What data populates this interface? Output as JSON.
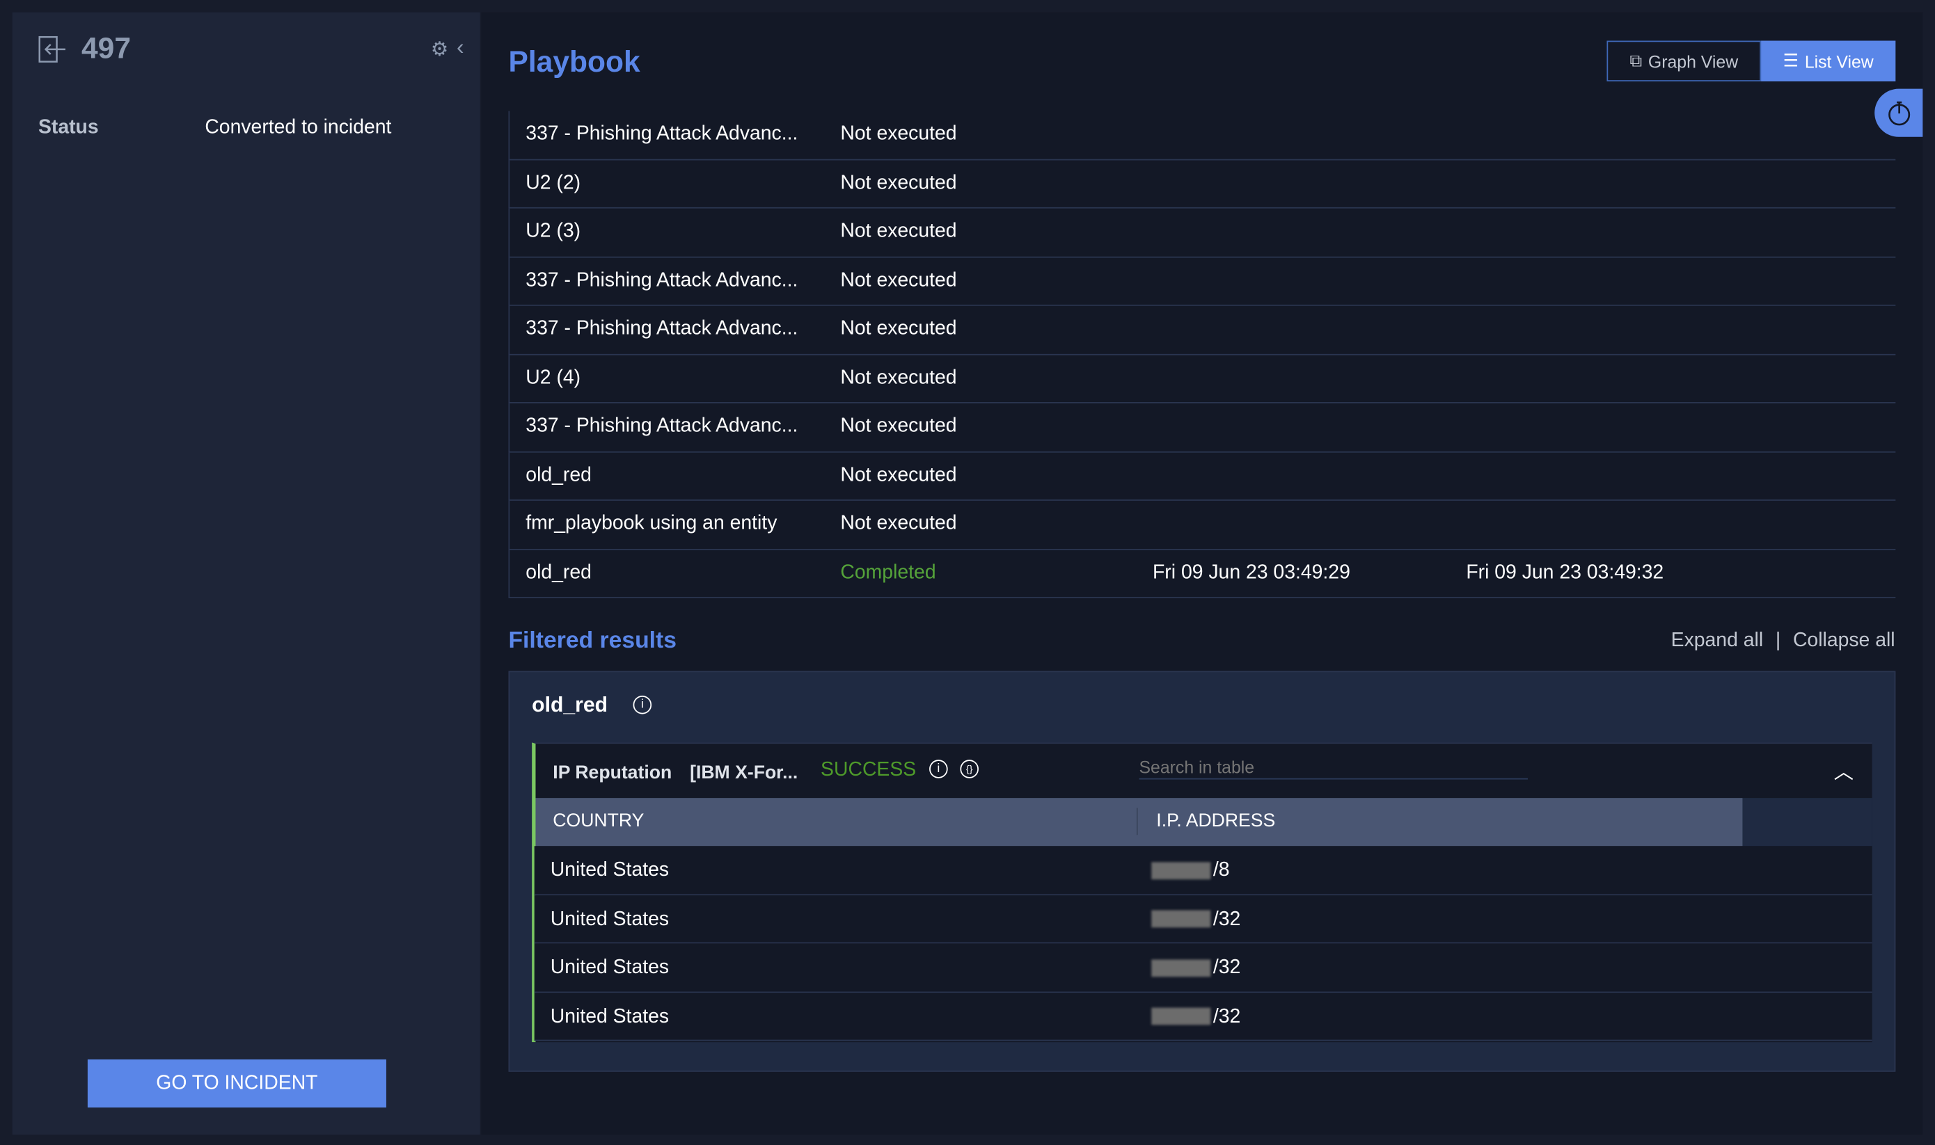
{
  "sidebar": {
    "incident_id": "497",
    "status_label": "Status",
    "status_value": "Converted to incident",
    "go_button": "GO TO INCIDENT"
  },
  "playbook": {
    "title": "Playbook",
    "graph_view": "Graph View",
    "list_view": "List View",
    "rows": [
      {
        "name": "337 - Phishing Attack Advanc...",
        "status": "Not executed",
        "start": "",
        "end": ""
      },
      {
        "name": "U2 (2)",
        "status": "Not executed",
        "start": "",
        "end": ""
      },
      {
        "name": "U2 (3)",
        "status": "Not executed",
        "start": "",
        "end": ""
      },
      {
        "name": "337 - Phishing Attack Advanc...",
        "status": "Not executed",
        "start": "",
        "end": ""
      },
      {
        "name": "337 - Phishing Attack Advanc...",
        "status": "Not executed",
        "start": "",
        "end": ""
      },
      {
        "name": "U2 (4)",
        "status": "Not executed",
        "start": "",
        "end": ""
      },
      {
        "name": "337 - Phishing Attack Advanc...",
        "status": "Not executed",
        "start": "",
        "end": ""
      },
      {
        "name": "old_red",
        "status": "Not executed",
        "start": "",
        "end": ""
      },
      {
        "name": "fmr_playbook using an entity",
        "status": "Not executed",
        "start": "",
        "end": ""
      },
      {
        "name": "old_red",
        "status": "Completed",
        "start": "Fri 09 Jun 23 03:49:29",
        "end": "Fri 09 Jun 23 03:49:32"
      }
    ]
  },
  "filtered": {
    "title": "Filtered results",
    "expand_all": "Expand all",
    "separator": "|",
    "collapse_all": "Collapse all",
    "card_title": "old_red",
    "action": {
      "name": "IP Reputation",
      "integration": "[IBM X-For...",
      "result": "SUCCESS",
      "search_placeholder": "Search in table",
      "columns": [
        "COUNTRY",
        "I.P. ADDRESS"
      ],
      "rows": [
        {
          "country": "United States",
          "ip": "/8"
        },
        {
          "country": "United States",
          "ip": "/32"
        },
        {
          "country": "United States",
          "ip": "/32"
        },
        {
          "country": "United States",
          "ip": "/32"
        }
      ]
    }
  },
  "colors": {
    "accent": "#5a86e8",
    "success": "#4e9a2a",
    "completed": "#55a33a"
  }
}
